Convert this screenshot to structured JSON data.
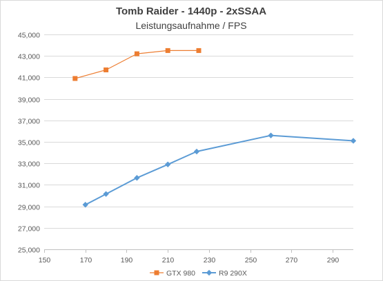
{
  "chart_data": {
    "type": "scatter",
    "title": "Tomb Raider - 1440p - 2xSSAA",
    "subtitle": "Leistungsaufnahme / FPS",
    "xlabel": "",
    "ylabel": "",
    "xlim": [
      150,
      300
    ],
    "ylim": [
      25000,
      45000
    ],
    "x_ticks": [
      150,
      170,
      190,
      210,
      230,
      250,
      270,
      290
    ],
    "y_ticks": [
      25000,
      27000,
      29000,
      31000,
      33000,
      35000,
      37000,
      39000,
      41000,
      43000,
      45000
    ],
    "x_tick_labels": [
      "150",
      "170",
      "190",
      "210",
      "230",
      "250",
      "270",
      "290"
    ],
    "y_tick_labels": [
      "25,000",
      "27,000",
      "29,000",
      "31,000",
      "33,000",
      "35,000",
      "37,000",
      "39,000",
      "41,000",
      "43,000",
      "45,000"
    ],
    "grid": "horizontal",
    "legend_position": "bottom",
    "series": [
      {
        "name": "GTX 980",
        "color": "#ED7D31",
        "marker": "square",
        "x": [
          165,
          180,
          195,
          210,
          225
        ],
        "y": [
          40900,
          41700,
          43200,
          43500,
          43500
        ]
      },
      {
        "name": "R9 290X",
        "color": "#5B9BD5",
        "marker": "diamond",
        "x": [
          170,
          180,
          195,
          210,
          224,
          260,
          300
        ],
        "y": [
          29150,
          30150,
          31650,
          32900,
          34100,
          35600,
          35100
        ]
      }
    ]
  }
}
